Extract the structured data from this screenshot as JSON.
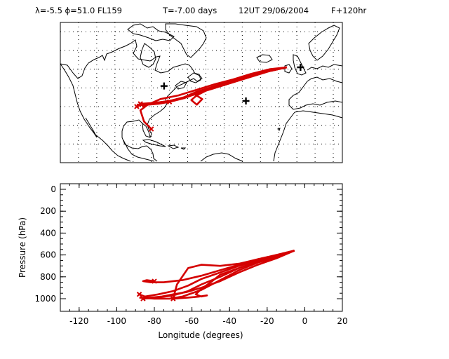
{
  "header": {
    "parameters": "λ=-5.5 ϕ=51.0 FL159",
    "time_offset": "T=-7.00 days",
    "datetime": "12UT 29/06/2004",
    "forecast": "F+120hr"
  },
  "map_panel": {
    "lon_range": [
      -130,
      25
    ],
    "lat_range": [
      0,
      75
    ],
    "grid": "dotted every 10 degrees",
    "coastline_color": "#000000",
    "trajectory_color": "#d40000",
    "markers": [
      {
        "type": "plus",
        "lon": -73,
        "lat": 41
      },
      {
        "type": "plus",
        "lon": -28,
        "lat": 33
      },
      {
        "type": "plus",
        "lon": 2,
        "lat": 51
      }
    ]
  },
  "profile_panel": {
    "xlabel": "Longitude  (degrees)",
    "ylabel": "Pressure  (hPa)",
    "xlim": [
      -130,
      20
    ],
    "ylim": [
      1000,
      0
    ],
    "xticks": [
      "-120",
      "-100",
      "-80",
      "-60",
      "-40",
      "-20",
      "0",
      "20"
    ],
    "yticks": [
      "0",
      "200",
      "400",
      "600",
      "800",
      "1000"
    ]
  },
  "chart_data": {
    "type": "line",
    "title": "",
    "xlabel": "Longitude  (degrees)",
    "ylabel": "Pressure  (hPa)",
    "xlim": [
      -130,
      20
    ],
    "ylim": [
      1000,
      0
    ],
    "series": [
      {
        "lon": [
          -5.5,
          -15,
          -25,
          -35,
          -45,
          -55,
          -65,
          -75,
          -82,
          -86,
          -84,
          -80
        ],
        "lat": [
          51,
          50,
          47.5,
          44.5,
          42,
          39,
          36,
          34,
          31,
          28,
          22,
          18
        ],
        "pressure": [
          560,
          600,
          640,
          690,
          740,
          790,
          830,
          850,
          850,
          840,
          830,
          840
        ]
      },
      {
        "lon": [
          -5.5,
          -15,
          -25,
          -35,
          -45,
          -55,
          -62,
          -70,
          -78,
          -85,
          -88
        ],
        "lat": [
          51,
          49.5,
          47,
          44,
          41,
          38,
          35,
          33,
          32,
          31,
          30
        ],
        "pressure": [
          560,
          610,
          650,
          700,
          760,
          820,
          880,
          930,
          960,
          980,
          960
        ]
      },
      {
        "lon": [
          -5.5,
          -15,
          -25,
          -35,
          -45,
          -55,
          -62,
          -70,
          -78,
          -86
        ],
        "lat": [
          51,
          49,
          46.5,
          43.5,
          40,
          37.5,
          34.5,
          33,
          32,
          31.5
        ],
        "pressure": [
          560,
          620,
          660,
          720,
          800,
          870,
          930,
          970,
          990,
          1000
        ]
      },
      {
        "lon": [
          -5.5,
          -15,
          -25,
          -35,
          -45,
          -55,
          -65,
          -72,
          -80,
          -88
        ],
        "lat": [
          51,
          49,
          46,
          43,
          40,
          37,
          34,
          32.5,
          31.5,
          31
        ],
        "pressure": [
          560,
          620,
          670,
          740,
          830,
          920,
          980,
          1000,
          1000,
          990
        ]
      },
      {
        "lon": [
          -5.5,
          -15,
          -25,
          -35,
          -45,
          -50,
          -55,
          -58,
          -55,
          -52,
          -56,
          -62,
          -70
        ],
        "lat": [
          51,
          49.5,
          47,
          44,
          41,
          38.5,
          36,
          33.5,
          31,
          34,
          36.5,
          35,
          33
        ],
        "pressure": [
          560,
          610,
          660,
          720,
          780,
          850,
          910,
          960,
          980,
          970,
          980,
          990,
          1000
        ]
      },
      {
        "lon": [
          -5.5,
          -15,
          -25,
          -35,
          -45,
          -55,
          -62,
          -68,
          -70
        ],
        "lat": [
          51,
          49,
          46.5,
          43.5,
          40.5,
          37,
          34.5,
          33,
          32.5
        ],
        "pressure": [
          560,
          600,
          640,
          680,
          700,
          690,
          720,
          870,
          1000
        ]
      },
      {
        "lon": [
          -5.5,
          -15,
          -25,
          -35,
          -45,
          -55,
          -63,
          -70,
          -76,
          -82,
          -85
        ],
        "lat": [
          51,
          49,
          46,
          43,
          40,
          37,
          34.5,
          32.5,
          31.5,
          31,
          30
        ],
        "pressure": [
          560,
          630,
          690,
          760,
          840,
          900,
          940,
          960,
          980,
          990,
          995
        ]
      }
    ],
    "end_markers": [
      {
        "lon": -70,
        "lat": 32.5,
        "pressure": 1000
      },
      {
        "lon": -88,
        "lat": 30,
        "pressure": 960
      },
      {
        "lon": -80,
        "lat": 18,
        "pressure": 840
      },
      {
        "lon": -86,
        "lat": 31.5,
        "pressure": 1000
      }
    ]
  }
}
